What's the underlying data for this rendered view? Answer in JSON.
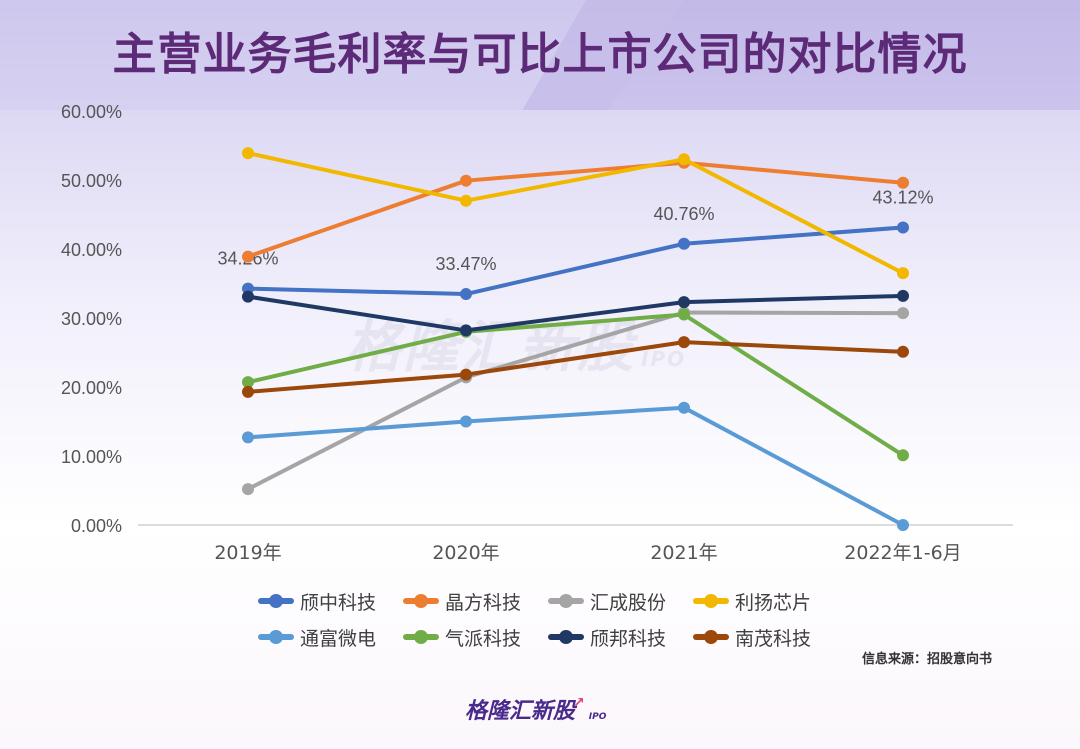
{
  "title": "主营业务毛利率与可比上市公司的对比情况",
  "source_text": "信息来源：招股意向书",
  "logo": {
    "name": "格隆汇新股",
    "sub": "IPO"
  },
  "watermark": {
    "name": "格隆汇新股",
    "sub": "IPO"
  },
  "chart_data": {
    "type": "line",
    "categories": [
      "2019年",
      "2020年",
      "2021年",
      "2022年1-6月"
    ],
    "ylim": [
      0,
      60
    ],
    "yticks": [
      "0.00%",
      "10.00%",
      "20.00%",
      "30.00%",
      "40.00%",
      "50.00%",
      "60.00%"
    ],
    "grid": false,
    "legend_position": "bottom",
    "series": [
      {
        "name": "颀中科技",
        "color": "#4472c4",
        "values": [
          34.26,
          33.47,
          40.76,
          43.12
        ],
        "labels": [
          "34.26%",
          "33.47%",
          "40.76%",
          "43.12%"
        ]
      },
      {
        "name": "晶方科技",
        "color": "#ed7d31",
        "values": [
          38.9,
          49.9,
          52.5,
          49.6
        ]
      },
      {
        "name": "汇成股份",
        "color": "#a5a5a5",
        "values": [
          5.2,
          21.4,
          30.8,
          30.7
        ]
      },
      {
        "name": "利扬芯片",
        "color": "#f2b800",
        "values": [
          53.9,
          47.0,
          53.0,
          36.5
        ]
      },
      {
        "name": "通富微电",
        "color": "#5b9bd5",
        "values": [
          12.7,
          15.0,
          17.0,
          0.0
        ]
      },
      {
        "name": "气派科技",
        "color": "#70ad47",
        "values": [
          20.7,
          28.0,
          30.5,
          10.1
        ]
      },
      {
        "name": "颀邦科技",
        "color": "#203864",
        "values": [
          33.1,
          28.2,
          32.3,
          33.2
        ]
      },
      {
        "name": "南茂科技",
        "color": "#9c480b",
        "values": [
          19.3,
          21.8,
          26.5,
          25.1
        ]
      }
    ]
  }
}
